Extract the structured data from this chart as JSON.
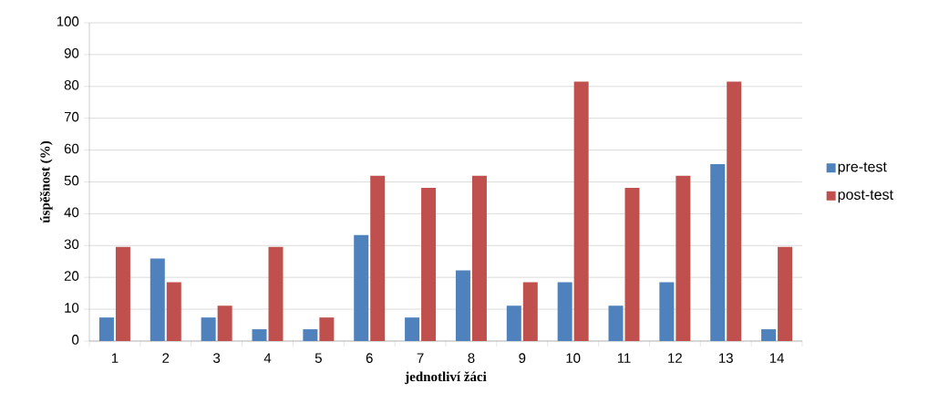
{
  "chart_data": {
    "type": "bar",
    "xlabel": "jednotliví žáci",
    "ylabel": "úspěšnost (%)",
    "categories": [
      "1",
      "2",
      "3",
      "4",
      "5",
      "6",
      "7",
      "8",
      "9",
      "10",
      "11",
      "12",
      "13",
      "14"
    ],
    "series": [
      {
        "name": "pre-test",
        "color": "#4f81bd",
        "values": [
          7.4,
          25.9,
          7.4,
          3.7,
          3.7,
          33.3,
          7.4,
          22.2,
          11.1,
          18.5,
          11.1,
          18.5,
          55.6,
          3.7
        ]
      },
      {
        "name": "post-test",
        "color": "#c0504d",
        "values": [
          29.6,
          18.5,
          11.1,
          29.6,
          7.4,
          51.9,
          48.1,
          51.9,
          18.5,
          81.5,
          48.1,
          51.9,
          81.5,
          29.6
        ]
      }
    ],
    "ylim": [
      0,
      100
    ],
    "yticks": [
      0,
      10,
      20,
      30,
      40,
      50,
      60,
      70,
      80,
      90,
      100
    ],
    "grid": "y",
    "legend": "right"
  }
}
